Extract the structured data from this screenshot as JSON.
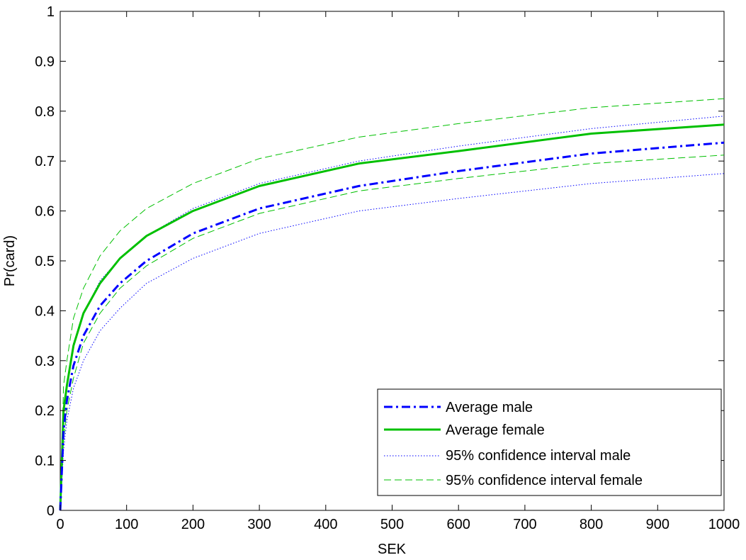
{
  "chart_data": {
    "type": "line",
    "xlabel": "SEK",
    "ylabel": "Pr(card)",
    "xlim": [
      0,
      1000
    ],
    "ylim": [
      0,
      1
    ],
    "xticks": [
      "0",
      "100",
      "200",
      "300",
      "400",
      "500",
      "600",
      "700",
      "800",
      "900",
      "1000"
    ],
    "yticks": [
      "0",
      "0.1",
      "0.2",
      "0.3",
      "0.4",
      "0.5",
      "0.6",
      "0.7",
      "0.8",
      "0.9",
      "1"
    ],
    "grid": false,
    "legend_position": "bottom-right",
    "x": [
      0,
      5,
      10,
      20,
      35,
      60,
      90,
      130,
      200,
      300,
      450,
      600,
      800,
      1000
    ],
    "series": [
      {
        "name": "Average male",
        "style": "dashdot",
        "color": "#0000ff",
        "values": [
          0.0,
          0.16,
          0.22,
          0.29,
          0.35,
          0.41,
          0.455,
          0.5,
          0.555,
          0.605,
          0.65,
          0.68,
          0.715,
          0.737
        ]
      },
      {
        "name": "Average female",
        "style": "solid",
        "color": "#00c000",
        "values": [
          0.0,
          0.2,
          0.25,
          0.33,
          0.395,
          0.455,
          0.505,
          0.55,
          0.6,
          0.65,
          0.695,
          0.72,
          0.755,
          0.773
        ]
      },
      {
        "name": "95% confidence interval male",
        "style": "dotted",
        "color": "#0000ff",
        "bands": [
          [
            0.0,
            0.12,
            0.18,
            0.245,
            0.3,
            0.36,
            0.405,
            0.455,
            0.505,
            0.555,
            0.6,
            0.625,
            0.655,
            0.675
          ],
          [
            0.0,
            0.19,
            0.255,
            0.335,
            0.395,
            0.46,
            0.505,
            0.55,
            0.605,
            0.655,
            0.7,
            0.73,
            0.765,
            0.79
          ]
        ]
      },
      {
        "name": "95% confidence interval female",
        "style": "dashed",
        "color": "#00c000",
        "bands": [
          [
            0.0,
            0.14,
            0.2,
            0.265,
            0.335,
            0.395,
            0.445,
            0.49,
            0.545,
            0.595,
            0.64,
            0.665,
            0.695,
            0.712
          ],
          [
            0.0,
            0.25,
            0.3,
            0.385,
            0.445,
            0.51,
            0.56,
            0.605,
            0.655,
            0.705,
            0.748,
            0.775,
            0.807,
            0.825
          ]
        ]
      }
    ]
  }
}
